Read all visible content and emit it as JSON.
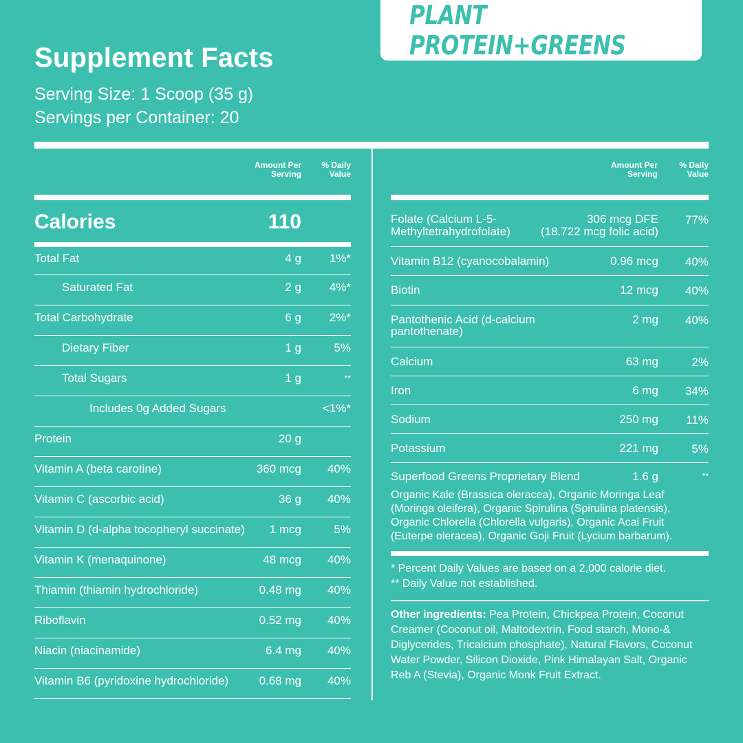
{
  "brand": "PLANT PROTEIN+GREENS",
  "title": "Supplement Facts",
  "serving_size": "Serving Size: 1 Scoop (35 g)",
  "servings_per_container": "Servings per Container: 20",
  "col_amount_1": "Amount Per",
  "col_amount_2": "Serving",
  "col_dv_1": "% Daily",
  "col_dv_2": "Value",
  "calories_label": "Calories",
  "calories_value": "110",
  "left_rows": [
    {
      "label": "Total Fat",
      "amount": "4 g",
      "dv": "1%*"
    },
    {
      "label": "Saturated Fat",
      "amount": "2 g",
      "dv": "4%*"
    },
    {
      "label": "Total Carbohydrate",
      "amount": "6 g",
      "dv": "2%*"
    },
    {
      "label": "Dietary Fiber",
      "amount": "1 g",
      "dv": "5%"
    },
    {
      "label": "Total Sugars",
      "amount": "1 g",
      "dv": "**"
    },
    {
      "label": "Includes 0g Added Sugars",
      "amount": "",
      "dv": "<1%*"
    },
    {
      "label": "Protein",
      "amount": "20 g",
      "dv": ""
    },
    {
      "label": "Vitamin A (beta carotine)",
      "amount": "360 mcg",
      "dv": "40%"
    },
    {
      "label": "Vitamin C (ascorbic acid)",
      "amount": "36 g",
      "dv": "40%"
    },
    {
      "label": "Vitamin D (d-alpha tocopheryl succinate)",
      "amount": "1 mcg",
      "dv": "5%"
    },
    {
      "label": "Vitamin K (menaquinone)",
      "amount": "48 mcg",
      "dv": "40%"
    },
    {
      "label": "Thiamin (thiamin hydrochloride)",
      "amount": "0.48 mg",
      "dv": "40%"
    },
    {
      "label": "Riboflavin",
      "amount": "0.52 mg",
      "dv": "40%"
    },
    {
      "label": "Niacin (niacinamide)",
      "amount": "6.4 mg",
      "dv": "40%"
    },
    {
      "label": "Vitamin B6 (pyridoxine hydrochloride)",
      "amount": "0.68 mg",
      "dv": "40%"
    }
  ],
  "right_rows": [
    {
      "label_1": "Folate (Calcium L-5-",
      "label_2": "Methyltetrahydrofolate)",
      "amount_1": "306 mcg DFE",
      "amount_2": "(18.722 mcg folic acid)",
      "dv": "77%"
    },
    {
      "label_1": "Vitamin B12 (cyanocobalamin)",
      "label_2": "",
      "amount_1": "0.96 mcg",
      "amount_2": "",
      "dv": "40%"
    },
    {
      "label_1": "Biotin",
      "label_2": "",
      "amount_1": "12 mcg",
      "amount_2": "",
      "dv": "40%"
    },
    {
      "label_1": "Pantothenic Acid (d-calcium",
      "label_2": "pantothenate)",
      "amount_1": "2 mg",
      "amount_2": "",
      "dv": "40%"
    },
    {
      "label_1": "Calcium",
      "label_2": "",
      "amount_1": "63 mg",
      "amount_2": "",
      "dv": "2%"
    },
    {
      "label_1": "Iron",
      "label_2": "",
      "amount_1": "6 mg",
      "amount_2": "",
      "dv": "34%"
    },
    {
      "label_1": "Sodium",
      "label_2": "",
      "amount_1": "250 mg",
      "amount_2": "",
      "dv": "11%"
    },
    {
      "label_1": "Potassium",
      "label_2": "",
      "amount_1": "221 mg",
      "amount_2": "",
      "dv": "5%"
    },
    {
      "label_1": "Superfood Greens Proprietary Blend",
      "label_2": "",
      "amount_1": "1.6 g",
      "amount_2": "",
      "dv": "**"
    }
  ],
  "blend_ingredients": "Organic Kale (Brassica oleracea), Organic Moringa Leaf (Moringa oleifera), Organic Spirulina (Spirulina platensis), Organic Chlorella (Chlorella vulgaris), Organic Acai Fruit (Euterpe oleracea), Organic Goji Fruit (Lycium barbarum).",
  "footnote_1": "* Percent Daily Values are based on a 2,000 calorie diet.",
  "footnote_2": "** Daily Value not established.",
  "other_label": "Other ingredients:",
  "other_text": " Pea Protein, Chickpea Protein, Coconut Creamer (Coconut oil, Maltodextrin, Food starch, Mono-& Diglycerides, Tricalcium phosphate), Natural Flavors, Coconut Water Powder, Silicon Dioxide, Pink Himalayan Salt, Organic Reb A (Stevia), Organic Monk Fruit Extract.",
  "colors": {
    "background": "#3dbfaf",
    "text": "#ffffff"
  }
}
